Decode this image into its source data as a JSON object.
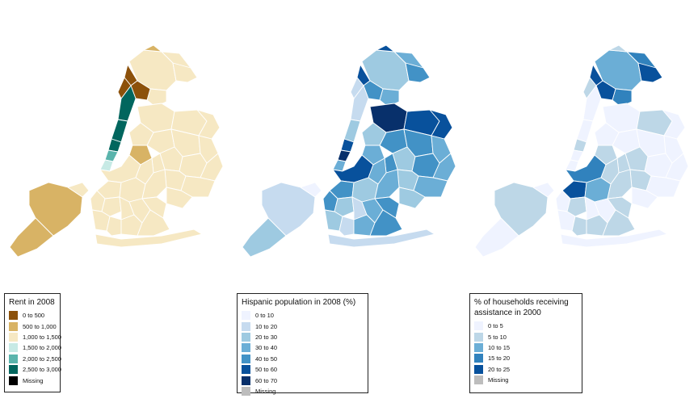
{
  "maps": [
    {
      "id": "rent",
      "legend_title": "Rent in 2008",
      "items": [
        {
          "label": "0 to 500",
          "color": "#8c510a"
        },
        {
          "label": "500 to 1,000",
          "color": "#d8b365"
        },
        {
          "label": "1,000 to 1,500",
          "color": "#f6e8c3"
        },
        {
          "label": "1,500 to 2,000",
          "color": "#c7eae5"
        },
        {
          "label": "2,000 to 2,500",
          "color": "#5ab4ac"
        },
        {
          "label": "2,500 to 3,000",
          "color": "#01665e"
        },
        {
          "label": "Missing",
          "color": "#000000"
        }
      ],
      "colors": {
        "bronx": [
          "#f6e8c3",
          "#f6e8c3",
          "#f6e8c3",
          "#f6e8c3",
          "#8c510a",
          "#8c510a",
          "#d8b365"
        ],
        "manhattan": [
          "#01665e",
          "#01665e",
          "#01665e",
          "#5ab4ac",
          "#c7eae5",
          "#8c510a"
        ],
        "queens": [
          "#f6e8c3",
          "#f6e8c3",
          "#f6e8c3",
          "#f6e8c3",
          "#d8b365",
          "#f6e8c3",
          "#f6e8c3",
          "#f6e8c3",
          "#f6e8c3",
          "#f6e8c3",
          "#f6e8c3",
          "#f6e8c3",
          "#f6e8c3",
          "#f6e8c3"
        ],
        "brooklyn": [
          "#f6e8c3",
          "#f6e8c3",
          "#f6e8c3",
          "#f6e8c3",
          "#f6e8c3",
          "#f6e8c3",
          "#f6e8c3",
          "#f6e8c3",
          "#f6e8c3",
          "#f6e8c3",
          "#f6e8c3",
          "#f6e8c3",
          "#f6e8c3",
          "#f6e8c3",
          "#f6e8c3",
          "#f6e8c3"
        ],
        "staten": [
          "#d8b365",
          "#f6e8c3",
          "#d8b365"
        ]
      }
    },
    {
      "id": "hispanic",
      "legend_title": "Hispanic population in 2008 (%)",
      "items": [
        {
          "label": "0 to 10",
          "color": "#eff3ff"
        },
        {
          "label": "10 to 20",
          "color": "#c6dbef"
        },
        {
          "label": "20 to 30",
          "color": "#9ecae1"
        },
        {
          "label": "30 to 40",
          "color": "#6baed6"
        },
        {
          "label": "40 to 50",
          "color": "#4292c6"
        },
        {
          "label": "50 to 60",
          "color": "#08519c"
        },
        {
          "label": "60 to 70",
          "color": "#08306b"
        },
        {
          "label": "Missing",
          "color": "#bdbdbd"
        }
      ],
      "colors": {
        "bronx": [
          "#9ecae1",
          "#6baed6",
          "#4292c6",
          "#6baed6",
          "#08519c",
          "#4292c6",
          "#08519c"
        ],
        "manhattan": [
          "#c6dbef",
          "#9ecae1",
          "#08519c",
          "#08306b",
          "#6baed6",
          "#c6dbef"
        ],
        "queens": [
          "#08306b",
          "#08519c",
          "#08519c",
          "#4292c6",
          "#6baed6",
          "#4292c6",
          "#6baed6",
          "#9ecae1",
          "#4292c6",
          "#6baed6",
          "#9ecae1",
          "#6baed6",
          "#9ecae1",
          "#4292c6"
        ],
        "brooklyn": [
          "#08519c",
          "#6baed6",
          "#4292c6",
          "#9ecae1",
          "#6baed6",
          "#4292c6",
          "#9ecae1",
          "#c6dbef",
          "#6baed6",
          "#4292c6",
          "#9ecae1",
          "#c6dbef",
          "#6baed6",
          "#9ecae1",
          "#4292c6",
          "#c6dbef"
        ],
        "staten": [
          "#c6dbef",
          "#eff3ff",
          "#9ecae1"
        ]
      }
    },
    {
      "id": "assistance",
      "legend_title": "% of households receiving assistance in 2000",
      "items": [
        {
          "label": "0 to 5",
          "color": "#eff3ff"
        },
        {
          "label": "5 to 10",
          "color": "#bdd7e7"
        },
        {
          "label": "10 to 15",
          "color": "#6baed6"
        },
        {
          "label": "15 to 20",
          "color": "#3182bd"
        },
        {
          "label": "20 to 25",
          "color": "#08519c"
        },
        {
          "label": "Missing",
          "color": "#bdbdbd"
        }
      ],
      "colors": {
        "bronx": [
          "#6baed6",
          "#3182bd",
          "#08519c",
          "#3182bd",
          "#08519c",
          "#08519c",
          "#bdd7e7"
        ],
        "manhattan": [
          "#eff3ff",
          "#eff3ff",
          "#bdd7e7",
          "#eff3ff",
          "#eff3ff",
          "#bdd7e7"
        ],
        "queens": [
          "#eff3ff",
          "#bdd7e7",
          "#eff3ff",
          "#eff3ff",
          "#bdd7e7",
          "#eff3ff",
          "#eff3ff",
          "#bdd7e7",
          "#eff3ff",
          "#eff3ff",
          "#bdd7e7",
          "#eff3ff",
          "#eff3ff",
          "#bdd7e7"
        ],
        "brooklyn": [
          "#3182bd",
          "#bdd7e7",
          "#08519c",
          "#6baed6",
          "#bdd7e7",
          "#eff3ff",
          "#bdd7e7",
          "#eff3ff",
          "#eff3ff",
          "#bdd7e7",
          "#eff3ff",
          "#bdd7e7",
          "#bdd7e7",
          "#eff3ff",
          "#bdd7e7",
          "#eff3ff"
        ],
        "staten": [
          "#bdd7e7",
          "#eff3ff",
          "#eff3ff"
        ]
      }
    }
  ]
}
